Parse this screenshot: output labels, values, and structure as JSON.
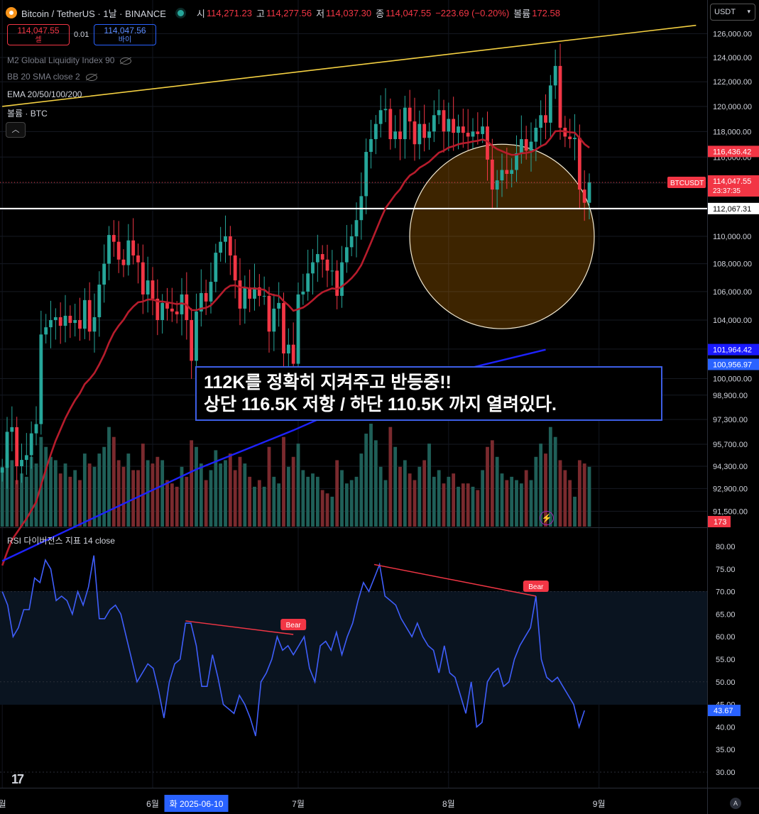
{
  "header": {
    "symbol": "Bitcoin / TetherUS · 1날 · BINANCE",
    "open_label": "시",
    "open": "114,271.23",
    "high_label": "고",
    "high": "114,277.56",
    "low_label": "저",
    "low": "114,037.30",
    "close_label": "종",
    "close": "114,047.55",
    "change": "−223.69 (−0.20%)",
    "volume_label": "볼륨",
    "volume": "172.58"
  },
  "trade": {
    "sell_price": "114,047.55",
    "sell_label": "셀",
    "spread": "0.01",
    "buy_price": "114,047.56",
    "buy_label": "바이"
  },
  "indicators": {
    "m2": "M2 Global Liquidity Index 90",
    "bb": "BB 20 SMA close 2",
    "ema": "EMA 20/50/100/200",
    "vol": "볼륨 · BTC"
  },
  "currency": "USDT",
  "annotation": {
    "line1": "112K를 정확히 지켜주고 반등중!!",
    "line2": "상단 116.5K 저항 / 하단 110.5K 까지 열려있다."
  },
  "rsi_title": "RSI 다이버전스 지표 14 close",
  "footer": {
    "tv_logo": "17",
    "autoscale": "A"
  },
  "colors": {
    "up": "#26a69a",
    "down": "#f23645",
    "ema": "#b71c2c",
    "ema200": "#1e22ff",
    "trend": "#f5d142",
    "rsi": "#3f5efb",
    "bear": "#f23645"
  },
  "chart_data": [
    {
      "type": "candlestick",
      "title": "",
      "yaxis_type": "log",
      "ylim": [
        90800,
        126900
      ],
      "y_ticks": [
        "126,000.00",
        "124,000.00",
        "122,000.00",
        "120,000.00",
        "118,000.00",
        "116,000.00",
        "114,000.00",
        "112,000.00",
        "110,000.00",
        "108,000.00",
        "106,000.00",
        "104,000.00",
        "102,000.00",
        "100,000.00",
        "98,900.00",
        "97,300.00",
        "95,700.00",
        "94,300.00",
        "92,900.00",
        "91,500.00"
      ],
      "x_ticks": [
        {
          "label": "월",
          "date": "2025-05-01"
        },
        {
          "label": "6월",
          "date": "2025-06-01"
        },
        {
          "label": "7월",
          "date": "2025-07-01"
        },
        {
          "label": "8월",
          "date": "2025-08-01"
        },
        {
          "label": "9월",
          "date": "2025-09-01"
        }
      ],
      "crosshair_date_label": "화 2025-06-10",
      "crosshair_date": "2025-06-10",
      "x_range": [
        "2025-05-01",
        "2025-09-23"
      ],
      "candles_start": "2025-05-01",
      "candles_end": "2025-08-22",
      "closes": [
        94200,
        96500,
        96800,
        94300,
        94700,
        95000,
        96400,
        97000,
        103000,
        103500,
        104000,
        104200,
        103600,
        104300,
        103800,
        104000,
        103400,
        105400,
        103200,
        104200,
        106500,
        108000,
        110100,
        109600,
        108300,
        107900,
        109700,
        108600,
        108100,
        105800,
        106800,
        105500,
        104000,
        105200,
        104800,
        104600,
        104400,
        105800,
        104000,
        101200,
        104600,
        105900,
        105300,
        106700,
        108800,
        109600,
        110000,
        108600,
        106800,
        104800,
        106300,
        105500,
        106300,
        105700,
        105700,
        103200,
        104800,
        105200,
        101700,
        102300,
        101000,
        105800,
        106000,
        107300,
        108100,
        108700,
        108300,
        107500,
        107500,
        105700,
        108100,
        109200,
        110000,
        111200,
        113000,
        116400,
        117400,
        118600,
        119700,
        119800,
        117400,
        118000,
        117400,
        119900,
        118800,
        117000,
        118600,
        117500,
        118000,
        119300,
        119700,
        118000,
        119000,
        117900,
        118400,
        117900,
        117600,
        118000,
        117800,
        118400,
        115800,
        113500,
        114200,
        115000,
        114700,
        115000,
        116300,
        117400,
        116500,
        117200,
        118300,
        119300,
        118700,
        121700,
        123300,
        118300,
        117600,
        117400,
        117500,
        113500,
        112500,
        114050
      ],
      "notes": "approximate daily closes read from the candles; open of each candle is the previous close",
      "price_lines": [
        {
          "label": "BTCUSDT",
          "value": "114,047.55",
          "countdown": "23:37:35"
        },
        {
          "label": "",
          "value": "116,436.42"
        },
        {
          "label": "",
          "value": "112,067.31"
        },
        {
          "label": "",
          "value": "101,964.42"
        },
        {
          "label": "",
          "value": "100,956.97"
        }
      ],
      "horizontal_level": 112067.31,
      "ema_short": {
        "name": "EMA 20",
        "values_note": "follows closes"
      },
      "ema_long_points": [
        [
          0,
          88500
        ],
        [
          40,
          94100
        ],
        [
          60,
          96600
        ],
        [
          80,
          99400
        ],
        [
          100,
          101000
        ],
        [
          112,
          101960
        ]
      ],
      "trendline": {
        "from": [
          0,
          120000
        ],
        "to": [
          143,
          126700
        ]
      },
      "resistance_circle": {
        "center_value": 110000,
        "top_value": 117000,
        "bottom_value": 103400,
        "center_date": "2025-08-12"
      },
      "volume": {
        "last": "173",
        "values": [
          18,
          22,
          20,
          14,
          16,
          15,
          21,
          19,
          27,
          24,
          21,
          20,
          16,
          19,
          15,
          17,
          14,
          22,
          19,
          18,
          22,
          24,
          30,
          27,
          20,
          18,
          22,
          17,
          17,
          25,
          20,
          19,
          21,
          20,
          14,
          13,
          12,
          18,
          15,
          26,
          24,
          19,
          14,
          17,
          23,
          19,
          20,
          22,
          17,
          21,
          19,
          15,
          12,
          14,
          12,
          24,
          15,
          13,
          27,
          18,
          21,
          25,
          17,
          15,
          16,
          15,
          11,
          10,
          9,
          20,
          17,
          13,
          14,
          15,
          22,
          28,
          31,
          26,
          18,
          14,
          30,
          24,
          18,
          20,
          16,
          14,
          18,
          20,
          25,
          15,
          17,
          13,
          15,
          16,
          12,
          13,
          13,
          12,
          11,
          17,
          24,
          26,
          21,
          16,
          14,
          15,
          14,
          13,
          17,
          14,
          21,
          25,
          22,
          30,
          27,
          20,
          17,
          14,
          9,
          20,
          19,
          18
        ]
      }
    },
    {
      "type": "line",
      "title": "RSI 다이버전스 지표 14 close",
      "ylim": [
        30,
        80
      ],
      "y_ticks": [
        "80.00",
        "75.00",
        "70.00",
        "65.00",
        "60.00",
        "55.00",
        "50.00",
        "45.00",
        "40.00",
        "35.00",
        "30.00"
      ],
      "last_value": "43.67",
      "values": [
        70,
        67,
        60,
        62,
        66,
        66,
        73,
        72,
        77,
        75,
        68,
        69,
        68,
        65,
        70,
        67,
        71,
        78,
        64,
        64,
        66,
        67,
        65,
        60,
        55,
        50,
        52,
        54,
        53,
        48,
        42,
        50,
        54,
        55,
        63,
        63,
        58,
        49,
        49,
        56,
        51,
        45,
        44,
        43,
        47,
        45,
        42,
        38,
        50,
        52,
        55,
        60,
        57,
        58,
        56,
        58,
        60,
        53,
        50,
        58,
        59,
        57,
        61,
        56,
        60,
        63,
        68,
        72,
        70,
        73,
        76,
        69,
        68,
        67,
        64,
        62,
        60,
        63,
        60,
        58,
        57,
        52,
        58,
        52,
        51,
        47,
        43,
        50,
        40,
        41,
        50,
        52,
        53,
        49,
        50,
        55,
        58,
        60,
        62,
        69,
        55,
        51,
        50,
        51,
        49,
        47,
        45,
        40,
        43.67
      ],
      "divergences": [
        {
          "label": "Bear",
          "from_index": 34,
          "to_index": 54,
          "from_value": 63.5,
          "to_value": 60.5
        },
        {
          "label": "Bear",
          "from_index": 69,
          "to_index": 99,
          "from_value": 76,
          "to_value": 69
        }
      ]
    }
  ]
}
